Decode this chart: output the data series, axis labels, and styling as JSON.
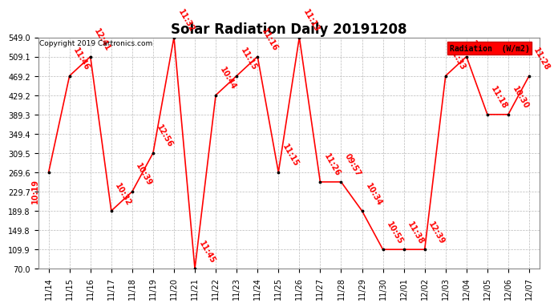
{
  "title": "Solar Radiation Daily 20191208",
  "copyright": "Copyright 2019 Cartronics.com",
  "legend_label": "Radiation  (W/m2)",
  "background_color": "#ffffff",
  "line_color": "#ff0000",
  "marker_color": "#000000",
  "label_color": "#ff0000",
  "grid_color": "#bbbbbb",
  "x_labels": [
    "11/14",
    "11/15",
    "11/16",
    "11/17",
    "11/18",
    "11/19",
    "11/20",
    "11/21",
    "11/22",
    "11/23",
    "11/24",
    "11/25",
    "11/26",
    "11/27",
    "11/28",
    "11/29",
    "11/30",
    "12/01",
    "12/02",
    "12/03",
    "12/04",
    "12/05",
    "12/06",
    "12/07"
  ],
  "y_vals": [
    269.6,
    469.2,
    509.1,
    189.8,
    229.7,
    309.5,
    549.0,
    70.0,
    429.2,
    469.2,
    509.1,
    269.6,
    549.0,
    249.7,
    249.7,
    189.8,
    109.9,
    109.9,
    109.9,
    469.2,
    509.1,
    389.3,
    389.3,
    469.2
  ],
  "time_labels": [
    "10:19",
    "11:46",
    "12:41",
    "10:32",
    "10:39",
    "12:56",
    "11:32",
    "11:45",
    "10:44",
    "11:15",
    "11:16",
    "11:15",
    "11:13",
    "11:26",
    "09:57",
    "10:34",
    "10:55",
    "11:38",
    "12:39",
    "11:33",
    "11",
    "11:18",
    "10:30",
    "11:28"
  ],
  "ytick_values": [
    70.0,
    109.9,
    149.8,
    189.8,
    229.7,
    269.6,
    309.5,
    349.4,
    389.3,
    429.2,
    469.2,
    509.1,
    549.0
  ],
  "ytick_labels": [
    "70.0",
    "109.9",
    "149.8",
    "189.8",
    "229.7",
    "269.6",
    "309.5",
    "349.4",
    "389.3",
    "429.2",
    "469.2",
    "509.1",
    "549.0"
  ],
  "ymin": 70.0,
  "ymax": 549.0,
  "title_fontsize": 12,
  "tick_fontsize": 7,
  "label_fontsize": 7,
  "legend_bg": "#ff0000",
  "legend_fg": "#000000"
}
